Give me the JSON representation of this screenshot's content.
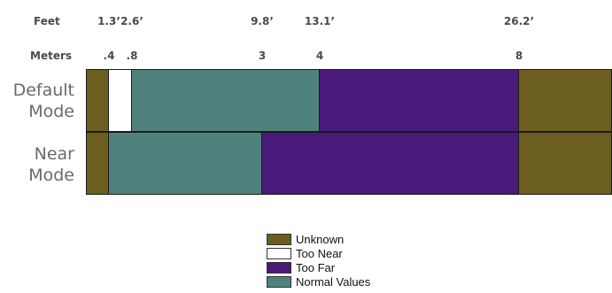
{
  "units": {
    "feet_label": "Feet",
    "meters_label": "Meters"
  },
  "ticks": [
    {
      "feet": "1.3’",
      "meters": ".4",
      "value_m": 0.4
    },
    {
      "feet": "2.6’",
      "meters": ".8",
      "value_m": 0.8
    },
    {
      "feet": "9.8’",
      "meters": "3",
      "value_m": 3
    },
    {
      "feet": "13.1’",
      "meters": "4",
      "value_m": 4
    },
    {
      "feet": "26.2’",
      "meters": "8",
      "value_m": 8
    }
  ],
  "modes": [
    {
      "label_line1": "Default",
      "label_line2": "Mode",
      "segments": [
        {
          "category": "unknown",
          "from": 0,
          "to": 0.4
        },
        {
          "category": "too_near",
          "from": 0.4,
          "to": 0.8
        },
        {
          "category": "normal",
          "from": 0.8,
          "to": 4
        },
        {
          "category": "too_far",
          "from": 4,
          "to": 8
        },
        {
          "category": "unknown",
          "from": 8,
          "to": 10
        }
      ]
    },
    {
      "label_line1": "Near",
      "label_line2": "Mode",
      "segments": [
        {
          "category": "unknown",
          "from": 0,
          "to": 0.4
        },
        {
          "category": "normal",
          "from": 0.4,
          "to": 3
        },
        {
          "category": "too_far",
          "from": 3,
          "to": 8
        },
        {
          "category": "unknown",
          "from": 8,
          "to": 10
        }
      ]
    }
  ],
  "axis_max_m": 10,
  "colors": {
    "unknown": "#6b5e1e",
    "too_near": "#ffffff",
    "too_far": "#4a1a7a",
    "normal": "#4f827c"
  },
  "legend": [
    {
      "category": "unknown",
      "label": "Unknown"
    },
    {
      "category": "too_near",
      "label": "Too Near"
    },
    {
      "category": "too_far",
      "label": "Too Far"
    },
    {
      "category": "normal",
      "label": "Normal Values"
    }
  ]
}
